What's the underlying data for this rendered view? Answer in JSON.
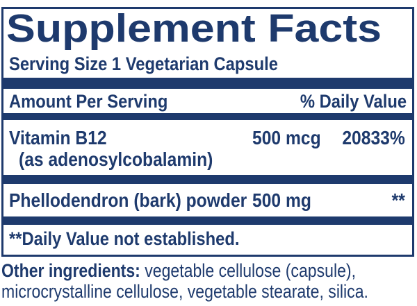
{
  "label": {
    "title": "Supplement Facts",
    "serving_size": "Serving Size 1 Vegetarian Capsule",
    "header": {
      "amount_col": "Amount Per Serving",
      "daily_value_col": "% Daily Value"
    },
    "rows": [
      {
        "name": "Vitamin B12",
        "detail": "(as adenosylcobalamin)",
        "amount": "500 mcg",
        "daily_value": "20833%"
      },
      {
        "name": "Phellodendron (bark) powder",
        "amount": "500 mg",
        "daily_value": "**"
      }
    ],
    "footnote": "**Daily Value not established.",
    "other_ingredients": {
      "lead": "Other ingredients:",
      "text": " vegetable cellulose (capsule), microcrystalline cellulose, vegetable stearate, silica."
    }
  },
  "colors": {
    "navy": "#1e3a6d",
    "background": "#ffffff"
  }
}
